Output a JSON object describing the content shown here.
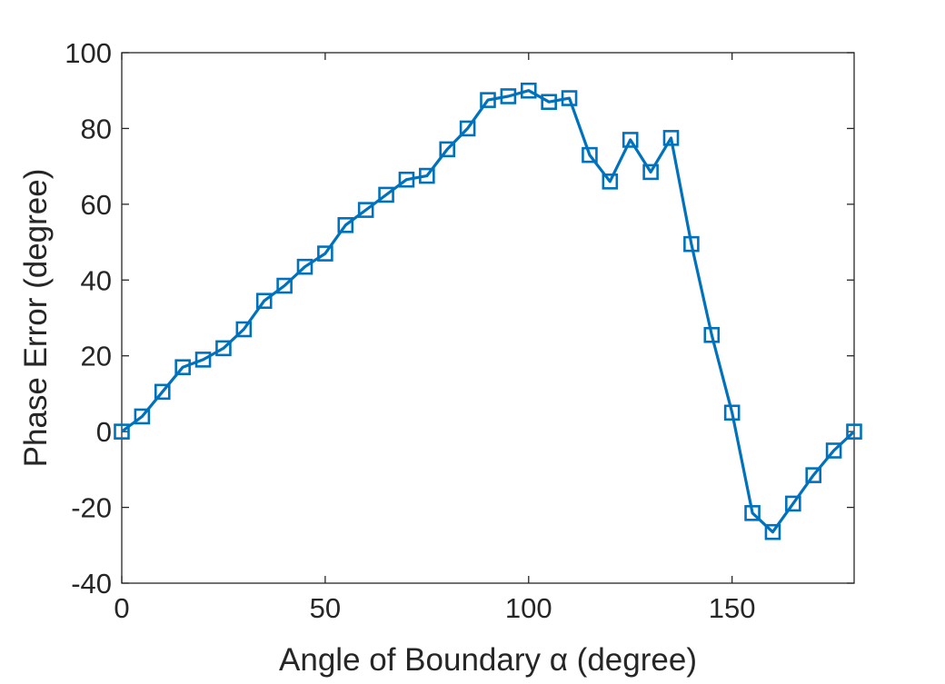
{
  "chart_data": {
    "type": "line",
    "title": "",
    "xlabel": "Angle of Boundary α (degree)",
    "ylabel": "Phase Error (degree)",
    "xlim": [
      0,
      180
    ],
    "ylim": [
      -40,
      100
    ],
    "xticks": [
      0,
      50,
      100,
      150
    ],
    "yticks": [
      -40,
      -20,
      0,
      20,
      40,
      60,
      80,
      100
    ],
    "xtick_labels": [
      "0",
      "50",
      "100",
      "150"
    ],
    "ytick_labels": [
      "-40",
      "-20",
      "0",
      "20",
      "40",
      "60",
      "80",
      "100"
    ],
    "grid": false,
    "box": true,
    "marker": "square",
    "color": "#0072BD",
    "series": [
      {
        "x": [
          0,
          5,
          10,
          15,
          20,
          25,
          30,
          35,
          40,
          45,
          50,
          55,
          60,
          65,
          70,
          75,
          80,
          85,
          90,
          95,
          100,
          105,
          110,
          115,
          120,
          125,
          130,
          135,
          140,
          145,
          150,
          155,
          160,
          165,
          170,
          175,
          180
        ],
        "y": [
          0,
          4,
          10.5,
          17,
          19,
          22,
          27,
          34.5,
          38.5,
          43.5,
          47,
          54.5,
          58.5,
          62.5,
          66.5,
          67.5,
          74.5,
          80,
          87.5,
          88.5,
          90,
          87,
          88,
          73,
          66,
          77,
          68.5,
          77.5,
          49.5,
          25.5,
          5,
          -21.5,
          -26.5,
          -19,
          -11.5,
          -5,
          0
        ]
      }
    ]
  }
}
